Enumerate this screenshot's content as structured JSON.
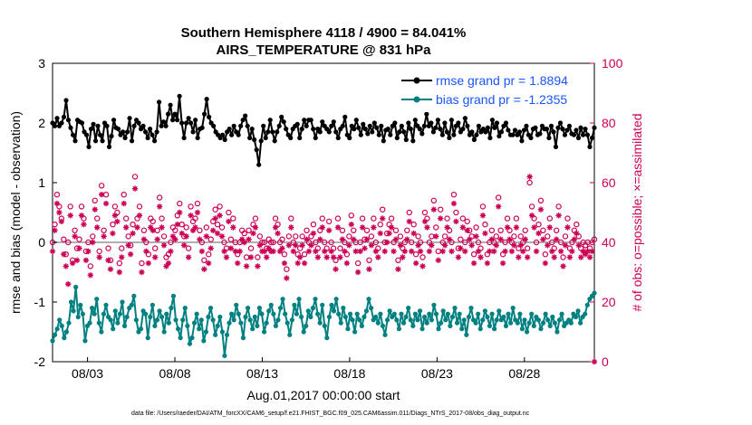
{
  "chart_data": {
    "type": "line",
    "title": "Southern Hemisphere 4118 / 4900 = 84.041%",
    "subtitle": "AIRS_TEMPERATURE @ 831 hPa",
    "xlabel": "Aug.01,2017 00:00:00 start",
    "ylabel": "rmse and bias (model - observation)",
    "y2label": "# of obs: o=possible; ×=assimilated",
    "ylim": [
      -2,
      3
    ],
    "y2lim": [
      0,
      100
    ],
    "xlim": [
      1.0,
      32.0
    ],
    "yticks": [
      "-2",
      "-1",
      "0",
      "1",
      "2",
      "3"
    ],
    "y2ticks": [
      "0",
      "20",
      "40",
      "60",
      "80",
      "100"
    ],
    "xticks": [
      {
        "label": "08/03",
        "x": 3
      },
      {
        "label": "08/08",
        "x": 8
      },
      {
        "label": "08/13",
        "x": 13
      },
      {
        "label": "08/18",
        "x": 18
      },
      {
        "label": "08/23",
        "x": 23
      },
      {
        "label": "08/28",
        "x": 28
      }
    ],
    "legend": {
      "location": "top-right",
      "entries": [
        "rmse grand pr = 1.8894",
        "bias grand pr = -1.2355"
      ]
    },
    "footer": "data file: /Users/raeder/DAI/ATM_forcXX/CAM6_setup/f.e21.FHIST_BGC.f09_025.CAM6assim.011/Diags_NTrS_2017-08/obs_diag_output.nc",
    "colors": {
      "rmse": "#000000",
      "bias": "#008080",
      "obs": "#cc0055",
      "zero_line": "#b0b0b0",
      "legend_text": "#1a55ff"
    },
    "series": [
      {
        "name": "rmse",
        "values": [
          2.0,
          1.95,
          2.08,
          1.95,
          2.0,
          2.1,
          2.38,
          2.05,
          1.92,
          1.8,
          1.7,
          2.05,
          2.02,
          2.0,
          1.85,
          1.8,
          1.6,
          1.9,
          1.98,
          1.7,
          1.95,
          1.8,
          1.7,
          2.0,
          1.95,
          1.6,
          1.78,
          2.05,
          1.92,
          1.9,
          1.8,
          1.85,
          1.75,
          1.85,
          2.08,
          1.7,
          1.95,
          2.05,
          2.0,
          1.9,
          1.95,
          1.85,
          1.75,
          1.9,
          1.8,
          1.7,
          1.85,
          2.35,
          1.95,
          2.02,
          1.95,
          2.15,
          2.3,
          2.05,
          2.15,
          2.05,
          2.45,
          2.0,
          1.75,
          2.0,
          2.08,
          2.0,
          1.85,
          2.05,
          1.75,
          1.9,
          1.92,
          2.15,
          2.4,
          2.1,
          2.0,
          1.95,
          1.85,
          1.8,
          1.75,
          1.8,
          1.72,
          1.85,
          1.9,
          1.8,
          1.95,
          1.85,
          1.8,
          1.95,
          2.05,
          2.12,
          1.95,
          1.75,
          1.9,
          1.72,
          1.55,
          1.3,
          1.7,
          1.95,
          1.75,
          1.85,
          2.05,
          1.85,
          1.7,
          1.85,
          1.95,
          2.1,
          2.02,
          1.9,
          1.8,
          1.75,
          1.9,
          1.95,
          1.98,
          1.75,
          1.9,
          2.05,
          1.95,
          2.05,
          2.05,
          1.9,
          1.75,
          1.9,
          1.85,
          2.02,
          1.95,
          1.9,
          1.85,
          1.95,
          2.02,
          1.85,
          1.75,
          1.9,
          1.95,
          2.1,
          1.8,
          1.75,
          1.95,
          1.9,
          2.05,
          1.92,
          1.8,
          1.98,
          1.9,
          1.82,
          1.95,
          1.85,
          2.0,
          1.92,
          1.8,
          1.95,
          1.7,
          1.88,
          1.9,
          1.8,
          1.95,
          2.0,
          1.75,
          1.85,
          1.95,
          1.85,
          1.72,
          2.0,
          1.9,
          1.7,
          2.05,
          1.95,
          1.9,
          1.82,
          1.95,
          2.15,
          1.95,
          2.0,
          1.85,
          1.92,
          2.05,
          1.9,
          1.8,
          2.0,
          1.85,
          1.75,
          2.05,
          1.8,
          1.95,
          2.0,
          1.85,
          1.9,
          2.08,
          1.95,
          1.8,
          1.85,
          1.72,
          1.8,
          1.95,
          1.85,
          1.9,
          1.85,
          1.92,
          1.75,
          2.05,
          1.92,
          2.0,
          1.78,
          1.85,
          1.95,
          2.0,
          1.88,
          1.8,
          1.8,
          1.88,
          1.8,
          1.85,
          1.7,
          1.88,
          1.95,
          1.8,
          1.75,
          1.9,
          1.92,
          1.8,
          1.82,
          1.95,
          1.9,
          1.9,
          1.75,
          1.95,
          1.85,
          1.6,
          1.92,
          2.0,
          1.9,
          1.8,
          1.88,
          1.95,
          1.82,
          1.8,
          1.88,
          1.75,
          1.92,
          1.8,
          1.9,
          1.8,
          1.6,
          1.75,
          1.92
        ]
      },
      {
        "name": "bias",
        "values": [
          -1.65,
          -1.55,
          -1.45,
          -1.3,
          -1.4,
          -1.6,
          -1.5,
          -1.35,
          -1.0,
          -1.15,
          -0.75,
          -1.25,
          -1.05,
          -1.2,
          -1.65,
          -1.4,
          -1.35,
          -1.1,
          -1.2,
          -0.95,
          -1.35,
          -1.5,
          -1.2,
          -1.05,
          -1.25,
          -1.3,
          -1.45,
          -1.15,
          -1.35,
          -1.2,
          -1.0,
          -1.4,
          -1.25,
          -1.1,
          -1.05,
          -0.9,
          -1.3,
          -1.5,
          -1.45,
          -1.15,
          -1.2,
          -1.6,
          -1.25,
          -1.05,
          -1.4,
          -1.3,
          -1.15,
          -1.25,
          -1.5,
          -1.2,
          -1.35,
          -1.1,
          -0.9,
          -1.3,
          -1.45,
          -1.6,
          -1.3,
          -1.1,
          -1.4,
          -1.7,
          -1.6,
          -1.35,
          -1.2,
          -1.45,
          -1.3,
          -1.65,
          -1.5,
          -1.25,
          -1.1,
          -1.3,
          -1.55,
          -1.4,
          -1.25,
          -1.5,
          -1.9,
          -1.55,
          -1.35,
          -1.2,
          -1.3,
          -1.05,
          -1.2,
          -1.35,
          -1.6,
          -1.25,
          -1.1,
          -1.3,
          -1.45,
          -1.25,
          -1.4,
          -1.1,
          -1.2,
          -1.5,
          -1.35,
          -1.15,
          -1.05,
          -1.2,
          -1.4,
          -1.3,
          -1.1,
          -0.95,
          -1.2,
          -1.35,
          -1.55,
          -1.3,
          -1.05,
          -1.2,
          -0.95,
          -1.25,
          -1.5,
          -1.4,
          -1.15,
          -1.25,
          -1.1,
          -0.95,
          -1.2,
          -1.35,
          -1.05,
          -1.4,
          -1.6,
          -1.25,
          -1.05,
          -1.15,
          -0.95,
          -1.2,
          -1.35,
          -1.1,
          -1.25,
          -1.45,
          -1.2,
          -1.3,
          -1.5,
          -1.2,
          -1.3,
          -1.4,
          -1.25,
          -1.15,
          -0.95,
          -1.1,
          -1.3,
          -1.25,
          -1.35,
          -1.2,
          -1.4,
          -1.55,
          -1.3,
          -1.15,
          -1.25,
          -1.2,
          -1.3,
          -1.45,
          -1.2,
          -1.35,
          -1.25,
          -1.1,
          -1.3,
          -1.4,
          -1.2,
          -1.3,
          -1.15,
          -1.45,
          -1.25,
          -1.35,
          -1.2,
          -1.3,
          -1.05,
          -1.2,
          -1.45,
          -1.35,
          -1.15,
          -1.3,
          -1.2,
          -1.4,
          -1.25,
          -1.1,
          -1.35,
          -1.2,
          -1.45,
          -1.3,
          -1.55,
          -1.25,
          -1.1,
          -1.3,
          -1.35,
          -1.2,
          -1.45,
          -1.3,
          -1.15,
          -1.25,
          -1.4,
          -1.2,
          -1.45,
          -1.3,
          -1.15,
          -1.3,
          -1.25,
          -1.4,
          -1.2,
          -1.35,
          -1.1,
          -1.3,
          -1.35,
          -1.2,
          -1.45,
          -1.3,
          -1.5,
          -1.35,
          -1.2,
          -1.4,
          -1.25,
          -1.3,
          -1.45,
          -1.35,
          -1.2,
          -1.3,
          -1.4,
          -1.25,
          -1.35,
          -1.5,
          -1.3,
          -1.2,
          -1.4,
          -1.35,
          -1.3,
          -1.35,
          -1.2,
          -1.25,
          -1.15,
          -1.35,
          -1.25,
          -1.2,
          -1.05,
          -0.95,
          -0.9,
          -0.85
        ]
      },
      {
        "name": "obs_possible",
        "axis": "right",
        "values": [
          40,
          46,
          56,
          52,
          48,
          41,
          36,
          40,
          52,
          34,
          44,
          38,
          41,
          52,
          48,
          37,
          40,
          32,
          42,
          54,
          48,
          37,
          59,
          44,
          56,
          38,
          34,
          46,
          52,
          50,
          33,
          38,
          56,
          48,
          42,
          39,
          46,
          62,
          48,
          52,
          33,
          44,
          40,
          36,
          48,
          47,
          38,
          44,
          55,
          48,
          42,
          35,
          36,
          40,
          45,
          44,
          49,
          53,
          46,
          42,
          45,
          38,
          52,
          47,
          48,
          53,
          44,
          40,
          34,
          45,
          36,
          41,
          47,
          51,
          46,
          52,
          45,
          40,
          38,
          50,
          41,
          48,
          40,
          36,
          40,
          44,
          43,
          35,
          44,
          38,
          46,
          48,
          35,
          42,
          40,
          40,
          38,
          41,
          40,
          40,
          48,
          46,
          40,
          41,
          36,
          31,
          42,
          48,
          40,
          42,
          36,
          38,
          42,
          36,
          44,
          40,
          42,
          46,
          40,
          38,
          44,
          48,
          40,
          38,
          47,
          40,
          38,
          34,
          48,
          38,
          44,
          40,
          36,
          42,
          49,
          44,
          40,
          33,
          40,
          48,
          41,
          44,
          34,
          42,
          48,
          40,
          38,
          46,
          51,
          40,
          43,
          46,
          48,
          40,
          44,
          34,
          42,
          38,
          40,
          44,
          50,
          40,
          46,
          36,
          42,
          40,
          35,
          50,
          48,
          40,
          42,
          54,
          45,
          37,
          51,
          40,
          42,
          48,
          44,
          40,
          56,
          50,
          38,
          41,
          48,
          40,
          47,
          44,
          42,
          36,
          45,
          40,
          38,
          52,
          46,
          36,
          40,
          44,
          40,
          42,
          55,
          44,
          36,
          40,
          48,
          44,
          40,
          42,
          48,
          38,
          42,
          40,
          44,
          38,
          60,
          52,
          48,
          40,
          46,
          54,
          44,
          36,
          42,
          48,
          40,
          38,
          44,
          52,
          40,
          35,
          42,
          48,
          38,
          40,
          44,
          46,
          42,
          38,
          40,
          39,
          40,
          38,
          40,
          41
        ]
      },
      {
        "name": "obs_assimilated",
        "axis": "right",
        "values": [
          37,
          44,
          53,
          50,
          47,
          36,
          32,
          26,
          49,
          33,
          42,
          34,
          38,
          49,
          46,
          34,
          37,
          29,
          40,
          51,
          45,
          35,
          56,
          42,
          53,
          34,
          31,
          43,
          49,
          47,
          30,
          35,
          53,
          45,
          39,
          36,
          43,
          58,
          45,
          49,
          30,
          41,
          37,
          33,
          45,
          44,
          35,
          41,
          52,
          45,
          39,
          32,
          33,
          37,
          42,
          41,
          46,
          50,
          43,
          39,
          42,
          35,
          49,
          44,
          45,
          50,
          41,
          37,
          31,
          42,
          33,
          38,
          44,
          48,
          43,
          49,
          42,
          37,
          35,
          47,
          38,
          45,
          37,
          33,
          37,
          41,
          40,
          32,
          41,
          35,
          43,
          45,
          32,
          39,
          37,
          37,
          35,
          38,
          37,
          37,
          45,
          43,
          37,
          38,
          33,
          28,
          39,
          45,
          37,
          39,
          33,
          35,
          39,
          33,
          41,
          37,
          39,
          43,
          37,
          35,
          41,
          45,
          37,
          35,
          44,
          37,
          35,
          31,
          45,
          35,
          41,
          37,
          33,
          39,
          46,
          41,
          37,
          30,
          37,
          45,
          38,
          41,
          31,
          39,
          45,
          37,
          35,
          43,
          48,
          37,
          40,
          43,
          45,
          37,
          41,
          31,
          39,
          35,
          37,
          41,
          47,
          37,
          43,
          33,
          39,
          37,
          32,
          47,
          45,
          37,
          39,
          51,
          42,
          34,
          48,
          37,
          39,
          45,
          41,
          37,
          53,
          47,
          35,
          38,
          45,
          37,
          44,
          41,
          39,
          33,
          42,
          37,
          35,
          49,
          43,
          33,
          37,
          41,
          37,
          39,
          52,
          41,
          33,
          37,
          45,
          41,
          37,
          39,
          45,
          35,
          39,
          37,
          41,
          35,
          62,
          49,
          45,
          37,
          43,
          51,
          41,
          33,
          39,
          45,
          37,
          35,
          41,
          49,
          37,
          32,
          39,
          45,
          35,
          37,
          41,
          43,
          39,
          35,
          37,
          36,
          37,
          35,
          37,
          0
        ]
      }
    ]
  }
}
